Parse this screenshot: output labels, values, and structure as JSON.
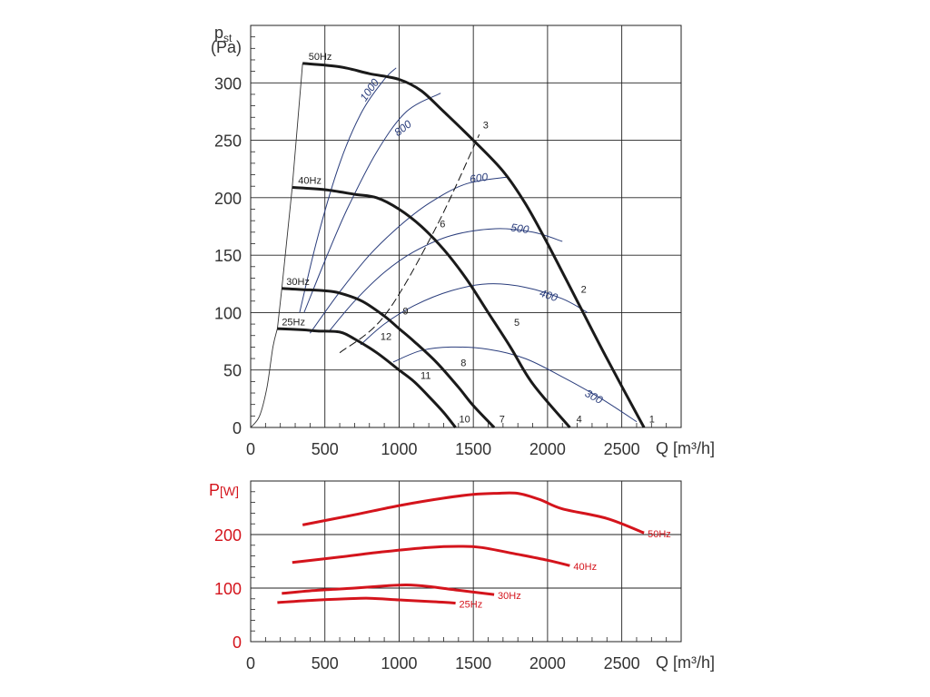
{
  "chart_data": [
    {
      "type": "line",
      "ylabel_main": "p",
      "ylabel_sub": "st",
      "yunit": "(Pa)",
      "xlabel": "Q [m³/h]",
      "xlim": [
        0,
        2900
      ],
      "ylim": [
        0,
        350
      ],
      "xticks": [
        "0",
        "500",
        "1000",
        "1500",
        "2000",
        "2500"
      ],
      "yticks": [
        "0",
        "50",
        "100",
        "150",
        "200",
        "250",
        "300"
      ],
      "xtick_values": [
        0,
        500,
        1000,
        1500,
        2000,
        2500
      ],
      "ytick_values": [
        0,
        50,
        100,
        150,
        200,
        250,
        300
      ],
      "colors": {
        "curve": "#1a1a1a",
        "rpm": "#2a3d7c",
        "grid": "#222222"
      },
      "fan_curves": [
        {
          "name": "50Hz",
          "points": [
            [
              350,
              317
            ],
            [
              600,
              314
            ],
            [
              800,
              308
            ],
            [
              1000,
              303
            ],
            [
              1150,
              293
            ],
            [
              1300,
              275
            ],
            [
              1500,
              250
            ],
            [
              1700,
              223
            ],
            [
              1850,
              195
            ],
            [
              2000,
              160
            ],
            [
              2200,
              110
            ],
            [
              2400,
              60
            ],
            [
              2650,
              0
            ]
          ]
        },
        {
          "name": "40Hz",
          "points": [
            [
              280,
              209
            ],
            [
              500,
              207
            ],
            [
              700,
              203
            ],
            [
              850,
              200
            ],
            [
              1000,
              190
            ],
            [
              1150,
              175
            ],
            [
              1300,
              155
            ],
            [
              1450,
              130
            ],
            [
              1600,
              100
            ],
            [
              1750,
              70
            ],
            [
              1900,
              38
            ],
            [
              2150,
              0
            ]
          ]
        },
        {
          "name": "30Hz",
          "points": [
            [
              210,
              121
            ],
            [
              350,
              120
            ],
            [
              500,
              119
            ],
            [
              600,
              117
            ],
            [
              750,
              110
            ],
            [
              900,
              97
            ],
            [
              1000,
              86
            ],
            [
              1100,
              75
            ],
            [
              1250,
              57
            ],
            [
              1400,
              35
            ],
            [
              1500,
              19
            ],
            [
              1640,
              0
            ]
          ]
        },
        {
          "name": "25Hz",
          "points": [
            [
              180,
              86
            ],
            [
              350,
              85
            ],
            [
              450,
              84
            ],
            [
              600,
              83
            ],
            [
              700,
              77
            ],
            [
              850,
              65
            ],
            [
              1000,
              50
            ],
            [
              1100,
              40
            ],
            [
              1200,
              27
            ],
            [
              1300,
              13
            ],
            [
              1380,
              0
            ]
          ]
        }
      ],
      "rpm_curves": [
        {
          "label": "1000",
          "points": [
            [
              330,
              100
            ],
            [
              450,
              165
            ],
            [
              600,
              230
            ],
            [
              750,
              275
            ],
            [
              900,
              303
            ],
            [
              980,
              313
            ]
          ]
        },
        {
          "label": "800",
          "points": [
            [
              360,
              100
            ],
            [
              500,
              145
            ],
            [
              650,
              190
            ],
            [
              850,
              240
            ],
            [
              1050,
              275
            ],
            [
              1280,
              291
            ]
          ]
        },
        {
          "label": "600",
          "points": [
            [
              400,
              82
            ],
            [
              600,
              118
            ],
            [
              800,
              150
            ],
            [
              1000,
              175
            ],
            [
              1200,
              195
            ],
            [
              1450,
              212
            ],
            [
              1730,
              218
            ]
          ]
        },
        {
          "label": "500",
          "points": [
            [
              530,
              84
            ],
            [
              700,
              110
            ],
            [
              900,
              135
            ],
            [
              1100,
              153
            ],
            [
              1350,
              167
            ],
            [
              1650,
              173
            ],
            [
              1900,
              170
            ],
            [
              2100,
              162
            ]
          ]
        },
        {
          "label": "400",
          "points": [
            [
              740,
              72
            ],
            [
              900,
              90
            ],
            [
              1100,
              106
            ],
            [
              1350,
              119
            ],
            [
              1600,
              125
            ],
            [
              1850,
              122
            ],
            [
              2100,
              112
            ],
            [
              2270,
              100
            ]
          ]
        },
        {
          "label": "300",
          "points": [
            [
              960,
              57
            ],
            [
              1150,
              67
            ],
            [
              1350,
              70
            ],
            [
              1600,
              68
            ],
            [
              1850,
              60
            ],
            [
              2100,
              44
            ],
            [
              2350,
              26
            ],
            [
              2600,
              5
            ]
          ]
        }
      ],
      "system_curves": [
        {
          "label": "3-6-9-12",
          "points": [
            [
              600,
              65
            ],
            [
              900,
              97
            ],
            [
              1240,
              172
            ],
            [
              1540,
              255
            ]
          ]
        }
      ],
      "point_labels": [
        {
          "label": "1",
          "q": 2660,
          "p": 2
        },
        {
          "label": "2",
          "q": 2200,
          "p": 115
        },
        {
          "label": "3",
          "q": 1540,
          "p": 258
        },
        {
          "label": "4",
          "q": 2170,
          "p": 2
        },
        {
          "label": "5",
          "q": 1750,
          "p": 86
        },
        {
          "label": "6",
          "q": 1250,
          "p": 172
        },
        {
          "label": "7",
          "q": 1650,
          "p": 2
        },
        {
          "label": "8",
          "q": 1390,
          "p": 51
        },
        {
          "label": "9",
          "q": 1000,
          "p": 96
        },
        {
          "label": "10",
          "q": 1380,
          "p": 2
        },
        {
          "label": "11",
          "q": 1120,
          "p": 40
        },
        {
          "label": "12",
          "q": 850,
          "p": 74
        }
      ],
      "curve_labels": [
        {
          "label": "50Hz",
          "q": 390,
          "p": 320
        },
        {
          "label": "40Hz",
          "q": 320,
          "p": 212
        },
        {
          "label": "30Hz",
          "q": 240,
          "p": 124
        },
        {
          "label": "25Hz",
          "q": 210,
          "p": 89
        }
      ]
    },
    {
      "type": "line",
      "ylabel_main": "P",
      "yunit": "[W]",
      "xlabel": "Q [m³/h]",
      "xlim": [
        0,
        2900
      ],
      "ylim": [
        0,
        300
      ],
      "xticks": [
        "0",
        "500",
        "1000",
        "1500",
        "2000",
        "2500"
      ],
      "yticks": [
        "0",
        "100",
        "200"
      ],
      "xtick_values": [
        0,
        500,
        1000,
        1500,
        2000,
        2500
      ],
      "ytick_values": [
        0,
        100,
        200
      ],
      "colors": {
        "curve": "#d4141c",
        "axis_label": "#d4141c"
      },
      "series": [
        {
          "name": "50Hz",
          "points": [
            [
              350,
              218
            ],
            [
              700,
              237
            ],
            [
              1000,
              254
            ],
            [
              1300,
              268
            ],
            [
              1500,
              275
            ],
            [
              1650,
              277
            ],
            [
              1800,
              277
            ],
            [
              1950,
              265
            ],
            [
              2100,
              248
            ],
            [
              2400,
              230
            ],
            [
              2650,
              203
            ]
          ]
        },
        {
          "name": "40Hz",
          "points": [
            [
              280,
              148
            ],
            [
              600,
              158
            ],
            [
              900,
              168
            ],
            [
              1200,
              176
            ],
            [
              1400,
              178
            ],
            [
              1550,
              176
            ],
            [
              1800,
              163
            ],
            [
              2000,
              152
            ],
            [
              2150,
              142
            ]
          ]
        },
        {
          "name": "30Hz",
          "points": [
            [
              210,
              90
            ],
            [
              450,
              96
            ],
            [
              700,
              100
            ],
            [
              900,
              104
            ],
            [
              1050,
              106
            ],
            [
              1200,
              103
            ],
            [
              1400,
              96
            ],
            [
              1640,
              88
            ]
          ]
        },
        {
          "name": "25Hz",
          "points": [
            [
              180,
              73
            ],
            [
              400,
              77
            ],
            [
              650,
              80
            ],
            [
              800,
              81
            ],
            [
              1000,
              78
            ],
            [
              1200,
              75
            ],
            [
              1380,
              72
            ]
          ]
        }
      ]
    }
  ]
}
